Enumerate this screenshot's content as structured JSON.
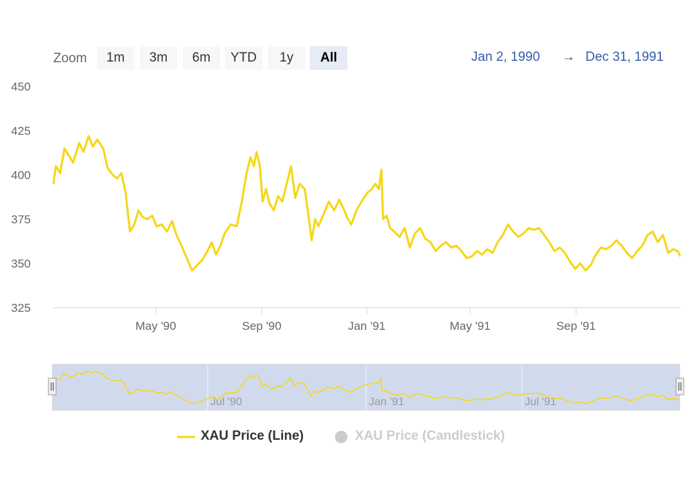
{
  "zoom": {
    "label": "Zoom",
    "buttons": [
      "1m",
      "3m",
      "6m",
      "YTD",
      "1y",
      "All"
    ],
    "selected": "All"
  },
  "range": {
    "from": "Jan 2, 1990",
    "arrow": "→",
    "to": "Dec 31, 1991"
  },
  "legend": {
    "line_label": "XAU Price (Line)",
    "candle_label": "XAU Price (Candlestick)",
    "line_color": "#f5d714",
    "inactive_color": "#cccccc"
  },
  "navigator": {
    "ticks": [
      "Jul '90",
      "Jan '91",
      "Jul '91"
    ],
    "fill_color": "#ccd6eb"
  },
  "chart_data": {
    "type": "line",
    "series": [
      {
        "name": "XAU Price (Line)",
        "color": "#f5d714",
        "points": [
          [
            "1990-01-02",
            395
          ],
          [
            "1990-01-05",
            405
          ],
          [
            "1990-01-10",
            401
          ],
          [
            "1990-01-15",
            415
          ],
          [
            "1990-01-20",
            411
          ],
          [
            "1990-01-25",
            407
          ],
          [
            "1990-02-01",
            418
          ],
          [
            "1990-02-06",
            413
          ],
          [
            "1990-02-12",
            422
          ],
          [
            "1990-02-17",
            416
          ],
          [
            "1990-02-22",
            420
          ],
          [
            "1990-03-01",
            415
          ],
          [
            "1990-03-06",
            404
          ],
          [
            "1990-03-12",
            400
          ],
          [
            "1990-03-17",
            398
          ],
          [
            "1990-03-22",
            401
          ],
          [
            "1990-03-27",
            390
          ],
          [
            "1990-04-01",
            368
          ],
          [
            "1990-04-06",
            372
          ],
          [
            "1990-04-11",
            380
          ],
          [
            "1990-04-16",
            376
          ],
          [
            "1990-04-21",
            375
          ],
          [
            "1990-04-27",
            377
          ],
          [
            "1990-05-02",
            371
          ],
          [
            "1990-05-08",
            372
          ],
          [
            "1990-05-14",
            368
          ],
          [
            "1990-05-20",
            374
          ],
          [
            "1990-05-25",
            366
          ],
          [
            "1990-05-31",
            360
          ],
          [
            "1990-06-06",
            353
          ],
          [
            "1990-06-12",
            346
          ],
          [
            "1990-06-18",
            349
          ],
          [
            "1990-06-24",
            352
          ],
          [
            "1990-06-30",
            357
          ],
          [
            "1990-07-05",
            362
          ],
          [
            "1990-07-10",
            355
          ],
          [
            "1990-07-15",
            360
          ],
          [
            "1990-07-20",
            367
          ],
          [
            "1990-07-27",
            372
          ],
          [
            "1990-08-03",
            371
          ],
          [
            "1990-08-09",
            385
          ],
          [
            "1990-08-14",
            400
          ],
          [
            "1990-08-19",
            410
          ],
          [
            "1990-08-23",
            405
          ],
          [
            "1990-08-26",
            413
          ],
          [
            "1990-08-30",
            405
          ],
          [
            "1990-09-02",
            385
          ],
          [
            "1990-09-06",
            392
          ],
          [
            "1990-09-10",
            384
          ],
          [
            "1990-09-15",
            380
          ],
          [
            "1990-09-20",
            388
          ],
          [
            "1990-09-25",
            385
          ],
          [
            "1990-09-30",
            395
          ],
          [
            "1990-10-05",
            405
          ],
          [
            "1990-10-10",
            387
          ],
          [
            "1990-10-15",
            395
          ],
          [
            "1990-10-21",
            392
          ],
          [
            "1990-10-25",
            378
          ],
          [
            "1990-10-29",
            363
          ],
          [
            "1990-11-02",
            375
          ],
          [
            "1990-11-06",
            371
          ],
          [
            "1990-11-12",
            378
          ],
          [
            "1990-11-18",
            385
          ],
          [
            "1990-11-24",
            380
          ],
          [
            "1990-11-30",
            386
          ],
          [
            "1990-12-05",
            381
          ],
          [
            "1990-12-09",
            376
          ],
          [
            "1990-12-14",
            372
          ],
          [
            "1990-12-20",
            380
          ],
          [
            "1990-12-26",
            385
          ],
          [
            "1991-01-02",
            390
          ],
          [
            "1991-01-07",
            392
          ],
          [
            "1991-01-11",
            395
          ],
          [
            "1991-01-15",
            392
          ],
          [
            "1991-01-18",
            403
          ],
          [
            "1991-01-20",
            375
          ],
          [
            "1991-01-24",
            377
          ],
          [
            "1991-01-28",
            370
          ],
          [
            "1991-02-02",
            368
          ],
          [
            "1991-02-08",
            365
          ],
          [
            "1991-02-14",
            370
          ],
          [
            "1991-02-20",
            359
          ],
          [
            "1991-02-26",
            367
          ],
          [
            "1991-03-04",
            370
          ],
          [
            "1991-03-10",
            364
          ],
          [
            "1991-03-16",
            362
          ],
          [
            "1991-03-22",
            357
          ],
          [
            "1991-03-28",
            360
          ],
          [
            "1991-04-03",
            362
          ],
          [
            "1991-04-09",
            359
          ],
          [
            "1991-04-15",
            360
          ],
          [
            "1991-04-21",
            357
          ],
          [
            "1991-04-27",
            353
          ],
          [
            "1991-05-03",
            354
          ],
          [
            "1991-05-09",
            357
          ],
          [
            "1991-05-15",
            355
          ],
          [
            "1991-05-21",
            358
          ],
          [
            "1991-05-27",
            356
          ],
          [
            "1991-06-02",
            362
          ],
          [
            "1991-06-08",
            366
          ],
          [
            "1991-06-14",
            372
          ],
          [
            "1991-06-20",
            368
          ],
          [
            "1991-06-26",
            365
          ],
          [
            "1991-07-02",
            367
          ],
          [
            "1991-07-08",
            370
          ],
          [
            "1991-07-14",
            369
          ],
          [
            "1991-07-20",
            370
          ],
          [
            "1991-07-26",
            366
          ],
          [
            "1991-08-01",
            362
          ],
          [
            "1991-08-07",
            357
          ],
          [
            "1991-08-13",
            359
          ],
          [
            "1991-08-19",
            356
          ],
          [
            "1991-08-25",
            351
          ],
          [
            "1991-08-31",
            347
          ],
          [
            "1991-09-06",
            350
          ],
          [
            "1991-09-12",
            346
          ],
          [
            "1991-09-18",
            349
          ],
          [
            "1991-09-24",
            355
          ],
          [
            "1991-09-30",
            359
          ],
          [
            "1991-10-06",
            358
          ],
          [
            "1991-10-12",
            360
          ],
          [
            "1991-10-18",
            363
          ],
          [
            "1991-10-24",
            360
          ],
          [
            "1991-10-30",
            356
          ],
          [
            "1991-11-05",
            353
          ],
          [
            "1991-11-11",
            357
          ],
          [
            "1991-11-17",
            360
          ],
          [
            "1991-11-23",
            366
          ],
          [
            "1991-11-29",
            368
          ],
          [
            "1991-12-05",
            362
          ],
          [
            "1991-12-11",
            366
          ],
          [
            "1991-12-17",
            356
          ],
          [
            "1991-12-23",
            358
          ],
          [
            "1991-12-28",
            357
          ],
          [
            "1991-12-31",
            354
          ]
        ]
      }
    ],
    "y_axis": {
      "min": 325,
      "max": 450,
      "ticks": [
        325,
        350,
        375,
        400,
        425,
        450
      ]
    },
    "x_axis": {
      "min": "1990-01-02",
      "max": "1991-12-31",
      "ticks": [
        {
          "date": "1990-05-01",
          "label": "May '90"
        },
        {
          "date": "1990-09-01",
          "label": "Sep '90"
        },
        {
          "date": "1991-01-01",
          "label": "Jan '91"
        },
        {
          "date": "1991-05-01",
          "label": "May '91"
        },
        {
          "date": "1991-09-01",
          "label": "Sep '91"
        }
      ]
    },
    "legend_position": "bottom-center"
  }
}
